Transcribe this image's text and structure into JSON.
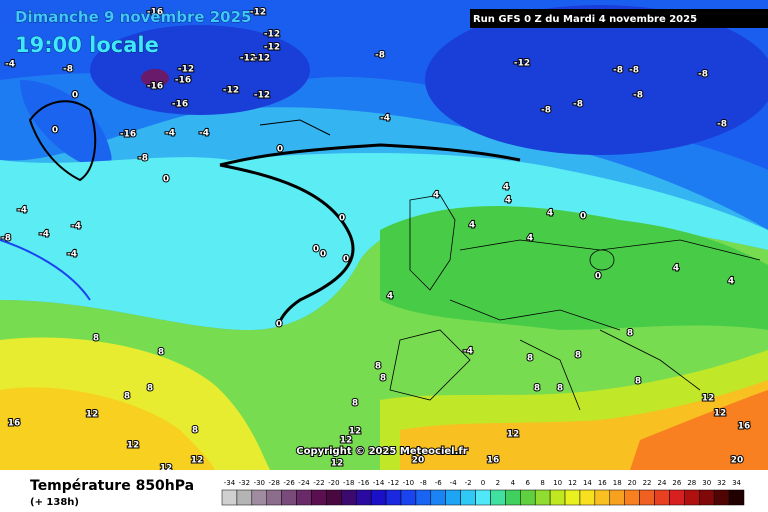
{
  "header": {
    "date": "Dimanche 9 novembre 2025",
    "time": "19:00 locale",
    "run": "Run GFS 0 Z du Mardi 4 novembre 2025"
  },
  "copyright": "Copyright © 2025 Meteociel.fr",
  "footer": {
    "title": "Température 850hPa",
    "lead": "(+ 138h)"
  },
  "legend": {
    "ticks": [
      -34,
      -32,
      -30,
      -28,
      -26,
      -24,
      -22,
      -20,
      -18,
      -16,
      -14,
      -12,
      -10,
      -8,
      -6,
      -4,
      -2,
      0,
      2,
      4,
      6,
      8,
      10,
      12,
      14,
      16,
      18,
      20,
      22,
      24,
      26,
      28,
      30,
      32,
      34
    ],
    "colors": [
      "#d0d0d0",
      "#b4b4b4",
      "#a08ca0",
      "#8c6e8c",
      "#7a4a7a",
      "#6a2a6a",
      "#5a1050",
      "#4a0840",
      "#3c0a6e",
      "#2a0aa0",
      "#1a10c8",
      "#1a28e0",
      "#1a44f0",
      "#1a64f4",
      "#1a84f4",
      "#1ea4f4",
      "#30c8f4",
      "#50e8f8",
      "#40e0a0",
      "#40d060",
      "#60d040",
      "#90dc30",
      "#c0e820",
      "#e8f020",
      "#f8e020",
      "#f8c020",
      "#f8a020",
      "#f88020",
      "#f06020",
      "#e84020",
      "#d82020",
      "#b01010",
      "#800808",
      "#500404",
      "#200000"
    ]
  },
  "contour_labels": [
    -16,
    -12,
    -12,
    -12,
    -12,
    -12,
    -4,
    -8,
    -12,
    -16,
    -16,
    -16,
    -12,
    -12,
    0,
    -8,
    -12,
    -8,
    -8,
    -8,
    -8,
    -8,
    -8,
    -8,
    -4,
    -4,
    -4,
    -16,
    -8,
    0,
    0,
    0,
    -4,
    -4,
    -4,
    -8,
    -4,
    4,
    4,
    4,
    4,
    4,
    4,
    0,
    4,
    4,
    0,
    0,
    0,
    0,
    0,
    4,
    0,
    8,
    8,
    -4,
    8,
    8,
    8,
    8,
    8,
    8,
    8,
    8,
    8,
    8,
    12,
    16,
    12,
    12,
    16,
    12,
    16,
    12,
    12,
    12,
    12,
    12,
    12,
    20,
    20,
    8,
    8
  ]
}
